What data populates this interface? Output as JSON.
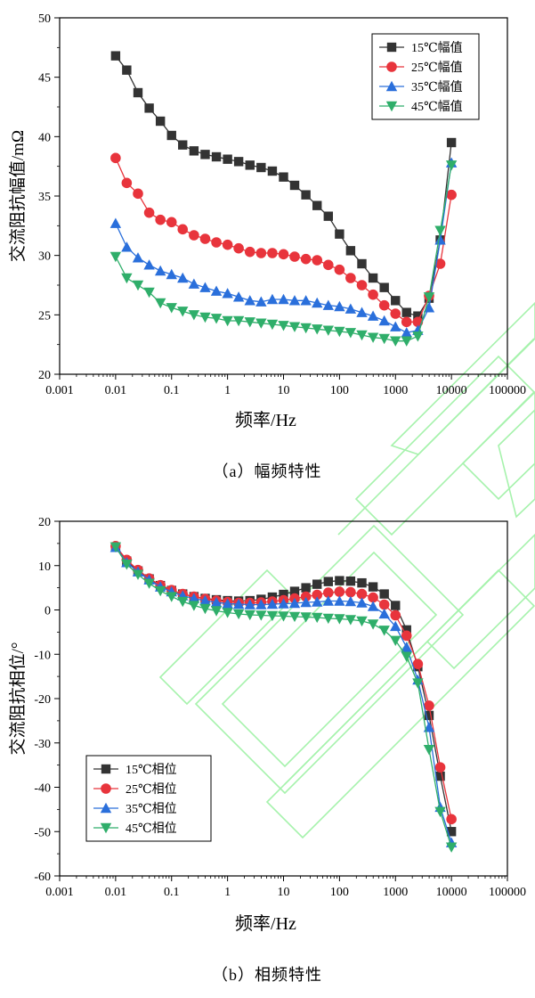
{
  "chart_data": [
    {
      "type": "line",
      "title": "",
      "caption": "（a）幅频特性",
      "xlabel": "频率/Hz",
      "ylabel": "交流阻抗幅值/mΩ",
      "x_scale": "log",
      "xlim": [
        0.001,
        100000
      ],
      "ylim": [
        20,
        50
      ],
      "x_ticks": [
        0.001,
        0.01,
        0.1,
        1,
        10,
        100,
        1000,
        10000,
        100000
      ],
      "x_tick_labels": [
        "0.001",
        "0.01",
        "0.1",
        "1",
        "10",
        "100",
        "1000",
        "10000",
        "100000"
      ],
      "y_ticks": [
        20,
        25,
        30,
        35,
        40,
        45,
        50
      ],
      "y_tick_labels": [
        "20",
        "25",
        "30",
        "35",
        "40",
        "45",
        "50"
      ],
      "grid": false,
      "legend_position": "top-right",
      "x": [
        0.01,
        0.0158,
        0.0251,
        0.0398,
        0.0631,
        0.1,
        0.158,
        0.251,
        0.398,
        0.631,
        1,
        1.58,
        2.51,
        3.98,
        6.31,
        10,
        15.8,
        25.1,
        39.8,
        63.1,
        100,
        158,
        251,
        398,
        631,
        1000,
        1580,
        2510,
        3980,
        6310,
        10000
      ],
      "series": [
        {
          "name": "15℃幅值",
          "color": "#333333",
          "marker": "square",
          "values": [
            46.8,
            45.6,
            43.7,
            42.4,
            41.3,
            40.1,
            39.3,
            38.8,
            38.5,
            38.3,
            38.1,
            37.9,
            37.6,
            37.4,
            37.1,
            36.6,
            35.9,
            35.1,
            34.2,
            33.3,
            31.8,
            30.4,
            29.3,
            28.1,
            27.3,
            26.2,
            25.2,
            24.9,
            26.4,
            31.3,
            39.5
          ]
        },
        {
          "name": "25℃幅值",
          "color": "#e8343c",
          "marker": "circle",
          "values": [
            38.2,
            36.1,
            35.2,
            33.6,
            33.0,
            32.8,
            32.2,
            31.7,
            31.4,
            31.1,
            30.9,
            30.6,
            30.3,
            30.2,
            30.2,
            30.1,
            29.9,
            29.7,
            29.6,
            29.2,
            28.8,
            28.1,
            27.5,
            26.7,
            25.8,
            25.1,
            24.4,
            24.4,
            26.6,
            29.3,
            35.1
          ]
        },
        {
          "name": "35℃幅值",
          "color": "#2a6fdb",
          "marker": "triangle-up",
          "values": [
            32.7,
            30.7,
            29.8,
            29.2,
            28.7,
            28.4,
            28.1,
            27.6,
            27.3,
            27.0,
            26.8,
            26.5,
            26.2,
            26.1,
            26.3,
            26.3,
            26.2,
            26.2,
            26.0,
            25.8,
            25.7,
            25.5,
            25.2,
            24.9,
            24.5,
            24.0,
            23.5,
            23.7,
            25.6,
            31.3,
            37.8
          ]
        },
        {
          "name": "45℃幅值",
          "color": "#2fae6a",
          "marker": "triangle-down",
          "values": [
            29.9,
            28.1,
            27.5,
            26.9,
            26.0,
            25.6,
            25.3,
            25.0,
            24.8,
            24.7,
            24.5,
            24.5,
            24.4,
            24.3,
            24.2,
            24.1,
            24.0,
            23.9,
            23.8,
            23.7,
            23.6,
            23.5,
            23.3,
            23.1,
            23.0,
            22.8,
            22.8,
            23.2,
            26.5,
            32.1,
            37.6
          ]
        }
      ]
    },
    {
      "type": "line",
      "title": "",
      "caption": "（b）相频特性",
      "xlabel": "频率/Hz",
      "ylabel": "交流阻抗相位/°",
      "x_scale": "log",
      "xlim": [
        0.001,
        100000
      ],
      "ylim": [
        -60,
        20
      ],
      "x_ticks": [
        0.001,
        0.01,
        0.1,
        1,
        10,
        100,
        1000,
        10000,
        100000
      ],
      "x_tick_labels": [
        "0.001",
        "0.01",
        "0.1",
        "1",
        "10",
        "100",
        "1000",
        "10000",
        "100000"
      ],
      "y_ticks": [
        -60,
        -50,
        -40,
        -30,
        -20,
        -10,
        0,
        10,
        20
      ],
      "y_tick_labels": [
        "-60",
        "-50",
        "-40",
        "-30",
        "-20",
        "-10",
        "0",
        "10",
        "20"
      ],
      "grid": false,
      "legend_position": "bottom-left",
      "x": [
        0.01,
        0.0158,
        0.0251,
        0.0398,
        0.0631,
        0.1,
        0.158,
        0.251,
        0.398,
        0.631,
        1,
        1.58,
        2.51,
        3.98,
        6.31,
        10,
        15.8,
        25.1,
        39.8,
        63.1,
        100,
        158,
        251,
        398,
        631,
        1000,
        1580,
        2510,
        3980,
        6310,
        10000
      ],
      "series": [
        {
          "name": "15℃相位",
          "color": "#333333",
          "marker": "square",
          "values": [
            14.2,
            11.0,
            8.8,
            7.0,
            5.5,
            4.4,
            3.6,
            3.0,
            2.6,
            2.3,
            2.1,
            2.0,
            2.1,
            2.4,
            2.9,
            3.5,
            4.2,
            5.0,
            5.8,
            6.4,
            6.6,
            6.5,
            6.1,
            5.2,
            3.6,
            1.0,
            -4.5,
            -12.8,
            -23.8,
            -37.5,
            -50.0
          ]
        },
        {
          "name": "25℃相位",
          "color": "#e8343c",
          "marker": "circle",
          "values": [
            14.4,
            11.3,
            9.0,
            7.1,
            5.6,
            4.5,
            3.6,
            3.0,
            2.5,
            2.1,
            1.8,
            1.6,
            1.6,
            1.7,
            1.9,
            2.2,
            2.6,
            3.0,
            3.4,
            3.9,
            4.1,
            4.0,
            3.6,
            2.8,
            1.2,
            -1.2,
            -5.8,
            -12.2,
            -21.6,
            -35.5,
            -47.2
          ]
        },
        {
          "name": "35℃相位",
          "color": "#2a6fdb",
          "marker": "triangle-up",
          "values": [
            14.1,
            10.7,
            8.6,
            6.8,
            5.2,
            4.1,
            3.2,
            2.6,
            2.1,
            1.7,
            1.4,
            1.3,
            1.2,
            1.2,
            1.3,
            1.4,
            1.5,
            1.7,
            1.8,
            2.0,
            2.0,
            1.9,
            1.6,
            0.8,
            -0.9,
            -3.7,
            -8.4,
            -15.8,
            -26.5,
            -44.5,
            -52.5
          ]
        },
        {
          "name": "45℃相位",
          "color": "#2fae6a",
          "marker": "triangle-down",
          "values": [
            14.2,
            10.3,
            8.0,
            6.0,
            4.3,
            3.0,
            1.9,
            1.0,
            0.3,
            -0.2,
            -0.6,
            -0.9,
            -1.1,
            -1.2,
            -1.3,
            -1.4,
            -1.5,
            -1.6,
            -1.7,
            -1.9,
            -2.0,
            -2.2,
            -2.5,
            -3.2,
            -4.6,
            -6.9,
            -10.5,
            -16.5,
            -31.5,
            -45.5,
            -53.5
          ]
        }
      ]
    }
  ]
}
